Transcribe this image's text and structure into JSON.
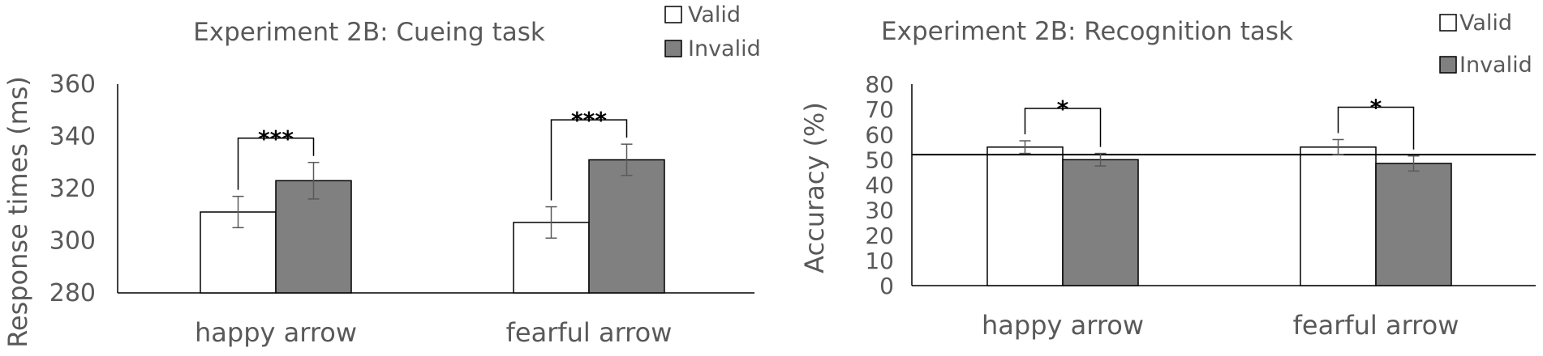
{
  "colors": {
    "valid": "#ffffff",
    "invalid": "#808080",
    "axis": "#000000",
    "text": "#595959",
    "error": "#595959"
  },
  "chart_data": [
    {
      "type": "bar",
      "title": "Experiment 2B: Cueing task",
      "ylabel": "Response times (ms)",
      "xlabel": "",
      "categories": [
        "happy arrow",
        "fearful arrow"
      ],
      "series": [
        {
          "name": "Valid",
          "values": [
            311,
            307
          ],
          "errors": [
            6,
            6
          ]
        },
        {
          "name": "Invalid",
          "values": [
            323,
            331
          ],
          "errors": [
            7,
            6
          ]
        }
      ],
      "ylim": [
        280,
        360
      ],
      "yticks": [
        "280",
        "300",
        "320",
        "340",
        "360"
      ],
      "significance": [
        "***",
        "***"
      ],
      "legend": "top-right",
      "grid": false
    },
    {
      "type": "bar",
      "title": "Experiment 2B: Recognition task",
      "ylabel": "Accuracy (%)",
      "xlabel": "",
      "categories": [
        "happy arrow",
        "fearful arrow"
      ],
      "series": [
        {
          "name": "Valid",
          "values": [
            55,
            55
          ],
          "errors": [
            2.5,
            3
          ]
        },
        {
          "name": "Invalid",
          "values": [
            50,
            48.5
          ],
          "errors": [
            2.5,
            3
          ]
        }
      ],
      "ylim": [
        0,
        80
      ],
      "yticks": [
        "0",
        "10",
        "20",
        "30",
        "40",
        "50",
        "60",
        "70",
        "80"
      ],
      "reference_line": 52,
      "significance": [
        "*",
        "*"
      ],
      "legend": "top-right",
      "grid": false
    }
  ]
}
